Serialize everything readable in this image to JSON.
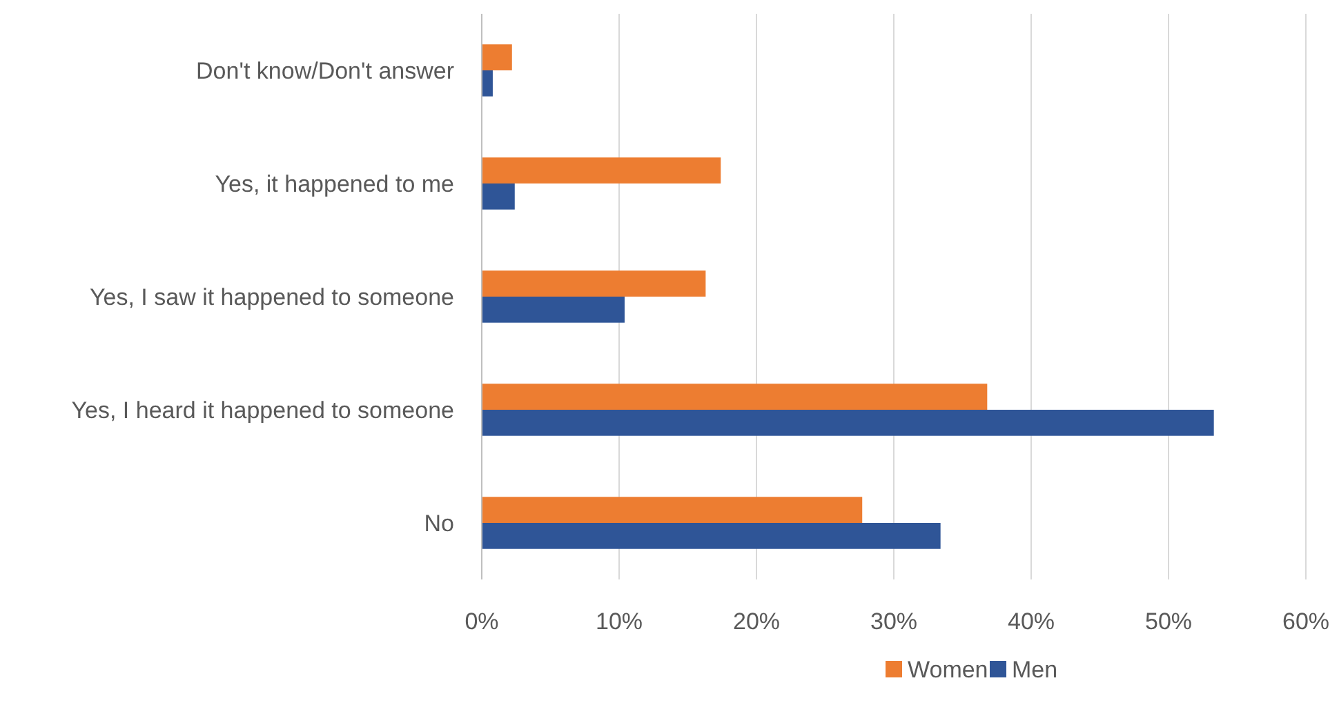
{
  "chart_data": {
    "type": "bar",
    "orientation": "horizontal",
    "categories": [
      "Don't know/Don't answer",
      "Yes, it happened to me",
      "Yes, I saw it happened to someone",
      "Yes, I heard it happened to someone",
      "No"
    ],
    "series": [
      {
        "name": "Women",
        "color": "#ed7d31",
        "values": [
          2.2,
          17.4,
          16.3,
          36.8,
          27.7
        ]
      },
      {
        "name": "Men",
        "color": "#2f5597",
        "values": [
          0.8,
          2.4,
          10.4,
          53.3,
          33.4
        ]
      }
    ],
    "xlim": [
      0,
      60
    ],
    "xticks": [
      {
        "value": 0,
        "label": "0%"
      },
      {
        "value": 10,
        "label": "10%"
      },
      {
        "value": 20,
        "label": "20%"
      },
      {
        "value": 30,
        "label": "30%"
      },
      {
        "value": 40,
        "label": "40%"
      },
      {
        "value": 50,
        "label": "50%"
      },
      {
        "value": 60,
        "label": "60%"
      }
    ],
    "grid": "x",
    "legend": "bottom"
  }
}
